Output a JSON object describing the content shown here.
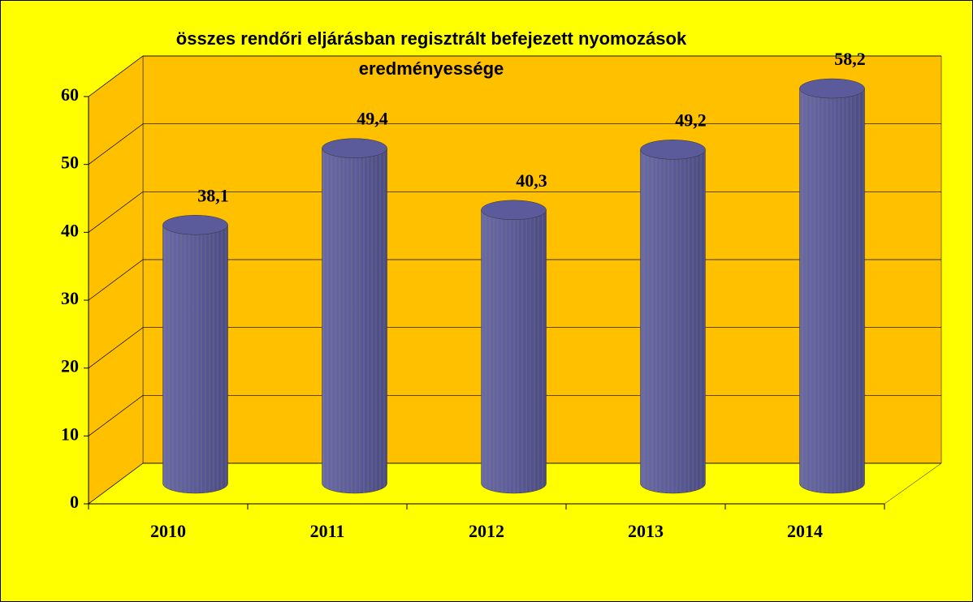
{
  "chart_data": {
    "type": "bar",
    "title": "összes rendőri eljárásban regisztrált befejezett nyomozások eredményessége",
    "categories": [
      "2010",
      "2011",
      "2012",
      "2013",
      "2014"
    ],
    "values": [
      38.1,
      49.4,
      40.3,
      49.2,
      58.2
    ],
    "value_labels": [
      "38,1",
      "49,4",
      "40,3",
      "49,2",
      "58,2"
    ],
    "color": "#5b5b9c",
    "ylim": [
      0,
      60
    ],
    "yticks": [
      0,
      10,
      20,
      30,
      40,
      50,
      60
    ],
    "grid": true
  }
}
